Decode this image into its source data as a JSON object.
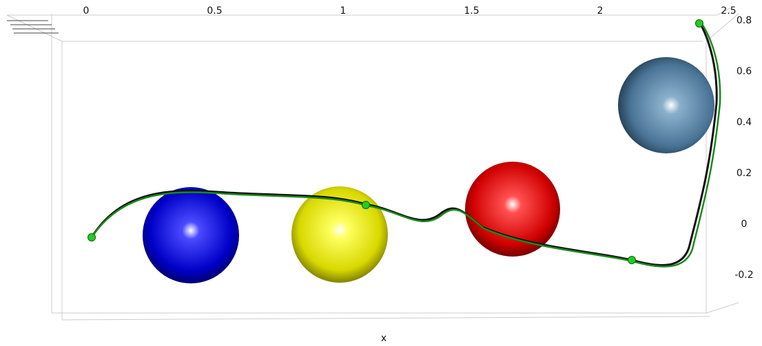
{
  "x_axis": {
    "label": "x",
    "ticks": [
      "0",
      "0.5",
      "1",
      "1.5",
      "2",
      "2.5"
    ]
  },
  "y_axis": {
    "ticks": [
      "0.8",
      "0.6",
      "0.4",
      "0.2",
      "0",
      "-0.2"
    ]
  }
}
